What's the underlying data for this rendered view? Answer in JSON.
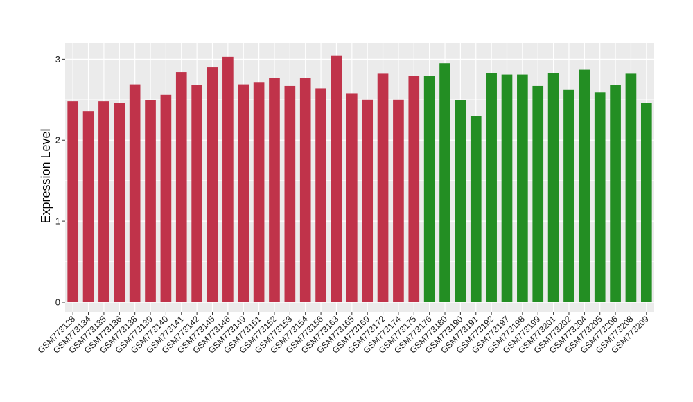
{
  "chart_data": {
    "type": "bar",
    "title": "",
    "xlabel": "",
    "ylabel": "Expression Level",
    "ylim": [
      -0.12,
      3.2
    ],
    "yticks": [
      0,
      1,
      2,
      3
    ],
    "grid": true,
    "background": "#ebebeb",
    "gridColor": "#ffffff",
    "categories": [
      "GSM773128",
      "GSM773134",
      "GSM773135",
      "GSM773136",
      "GSM773138",
      "GSM773139",
      "GSM773140",
      "GSM773141",
      "GSM773142",
      "GSM773145",
      "GSM773146",
      "GSM773149",
      "GSM773151",
      "GSM773152",
      "GSM773153",
      "GSM773154",
      "GSM773156",
      "GSM773163",
      "GSM773165",
      "GSM773169",
      "GSM773172",
      "GSM773174",
      "GSM773175",
      "GSM773176",
      "GSM773180",
      "GSM773190",
      "GSM773191",
      "GSM773192",
      "GSM773197",
      "GSM773198",
      "GSM773199",
      "GSM773201",
      "GSM773202",
      "GSM773204",
      "GSM773205",
      "GSM773206",
      "GSM773208",
      "GSM773209"
    ],
    "values": [
      2.48,
      2.36,
      2.48,
      2.46,
      2.69,
      2.49,
      2.56,
      2.84,
      2.68,
      2.9,
      3.03,
      2.69,
      2.71,
      2.77,
      2.67,
      2.77,
      2.64,
      3.04,
      2.58,
      2.5,
      2.82,
      2.5,
      2.79,
      2.79,
      2.95,
      2.49,
      2.3,
      2.83,
      2.81,
      2.81,
      2.67,
      2.83,
      2.62,
      2.87,
      2.59,
      2.68,
      2.82,
      2.46
    ],
    "groups": [
      {
        "color": "#c0334a",
        "count": 23
      },
      {
        "color": "#238e23",
        "count": 15
      }
    ]
  }
}
